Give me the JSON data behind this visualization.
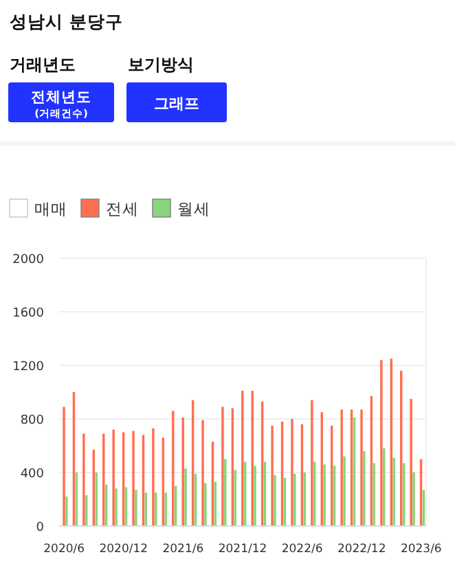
{
  "chart_data": {
    "type": "bar",
    "title": "성남시 분당구",
    "annotations": [
      "거래년도",
      "전체년도",
      "(거래건수)",
      "보기방식",
      "그래프"
    ],
    "categories": [
      "2020/6",
      null,
      null,
      null,
      null,
      null,
      "2020/12",
      null,
      null,
      null,
      null,
      null,
      "2021/6",
      null,
      null,
      null,
      null,
      null,
      "2021/12",
      null,
      null,
      null,
      null,
      null,
      "2022/6",
      null,
      null,
      null,
      null,
      null,
      "2022/12",
      null,
      null,
      null,
      null,
      null,
      "2023/6"
    ],
    "series": [
      {
        "name": "매매",
        "color": "#ffffff",
        "values": [
          null,
          null,
          null,
          null,
          null,
          null,
          null,
          null,
          null,
          null,
          null,
          null,
          null,
          null,
          null,
          null,
          null,
          null,
          null,
          null,
          null,
          null,
          null,
          null,
          null,
          null,
          null,
          null,
          null,
          null,
          null,
          null,
          null,
          null,
          null,
          null,
          null
        ]
      },
      {
        "name": "전세",
        "color": "#ff6f50",
        "values": [
          890,
          1000,
          690,
          570,
          690,
          720,
          700,
          710,
          680,
          730,
          660,
          860,
          810,
          940,
          790,
          630,
          890,
          880,
          1010,
          1010,
          930,
          750,
          780,
          800,
          760,
          940,
          850,
          750,
          870,
          870,
          870,
          970,
          1240,
          1250,
          1160,
          950,
          500
        ]
      },
      {
        "name": "월세",
        "color": "#86d67a",
        "values": [
          220,
          400,
          230,
          400,
          310,
          280,
          290,
          270,
          250,
          250,
          250,
          300,
          430,
          390,
          320,
          330,
          500,
          420,
          480,
          450,
          480,
          380,
          360,
          390,
          400,
          480,
          460,
          450,
          520,
          810,
          560,
          470,
          580,
          510,
          470,
          400,
          270
        ]
      }
    ],
    "ylim": [
      0,
      2000
    ],
    "yticks": [
      0,
      400,
      800,
      1200,
      1600,
      2000
    ],
    "grid": "y",
    "legend": "top left"
  }
}
